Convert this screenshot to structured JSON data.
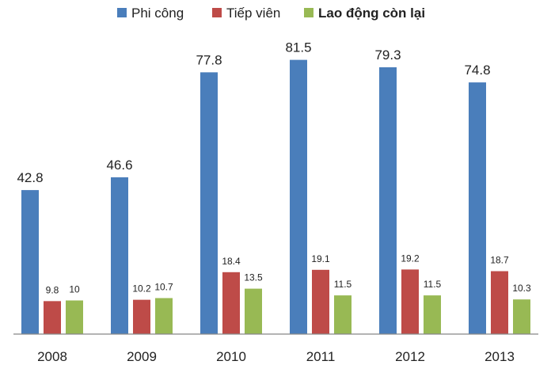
{
  "chart_data": {
    "type": "bar",
    "categories": [
      "2008",
      "2009",
      "2010",
      "2011",
      "2012",
      "2013"
    ],
    "series": [
      {
        "name": "Phi công",
        "values": [
          42.8,
          46.6,
          77.8,
          81.5,
          79.3,
          74.8
        ],
        "color": "#4a7ebb"
      },
      {
        "name": "Tiếp viên",
        "values": [
          9.8,
          10.2,
          18.4,
          19.1,
          19.2,
          18.7
        ],
        "color": "#be4b48"
      },
      {
        "name": "Lao động còn lại",
        "values": [
          10,
          10.7,
          13.5,
          11.5,
          11.5,
          10.3
        ],
        "color": "#98b954"
      }
    ],
    "value_labels": [
      [
        "42.8",
        "46.6",
        "77.8",
        "81.5",
        "79.3",
        "74.8"
      ],
      [
        "9.8",
        "10.2",
        "18.4",
        "19.1",
        "19.2",
        "18.7"
      ],
      [
        "10",
        "10.7",
        "13.5",
        "11.5",
        "11.5",
        "10.3"
      ]
    ],
    "title": "",
    "xlabel": "",
    "ylabel": "",
    "ylim": [
      0,
      90
    ],
    "grid": false,
    "legend_position": "top",
    "colors": {
      "axis": "#888888",
      "text": "#222222"
    }
  }
}
